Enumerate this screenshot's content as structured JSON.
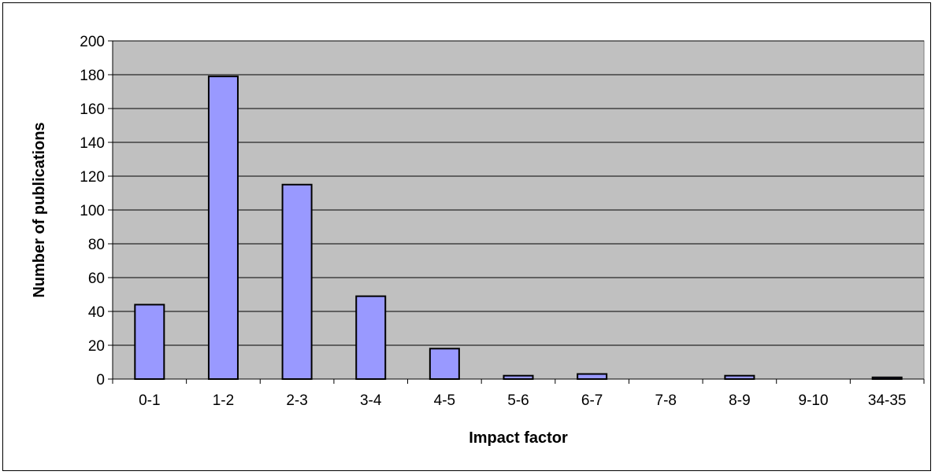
{
  "chart_data": {
    "type": "bar",
    "title": "",
    "xlabel": "Impact factor",
    "ylabel": "Number of publications",
    "categories": [
      "0-1",
      "1-2",
      "2-3",
      "3-4",
      "4-5",
      "5-6",
      "6-7",
      "7-8",
      "8-9",
      "9-10",
      "34-35"
    ],
    "values": [
      44,
      179,
      115,
      49,
      18,
      2,
      3,
      0,
      2,
      0,
      1
    ],
    "ylim": [
      0,
      200
    ],
    "yticks": [
      0,
      20,
      40,
      60,
      80,
      100,
      120,
      140,
      160,
      180,
      200
    ],
    "ytick_labels": [
      "0",
      "20",
      "40",
      "60",
      "80",
      "100",
      "120",
      "140",
      "160",
      "180",
      "200"
    ],
    "grid": true,
    "legend": "none",
    "colors": {
      "bar_fill": "#9999ff",
      "bar_stroke": "#000000",
      "plot_background": "#c0c0c0",
      "gridline": "#000000"
    }
  }
}
